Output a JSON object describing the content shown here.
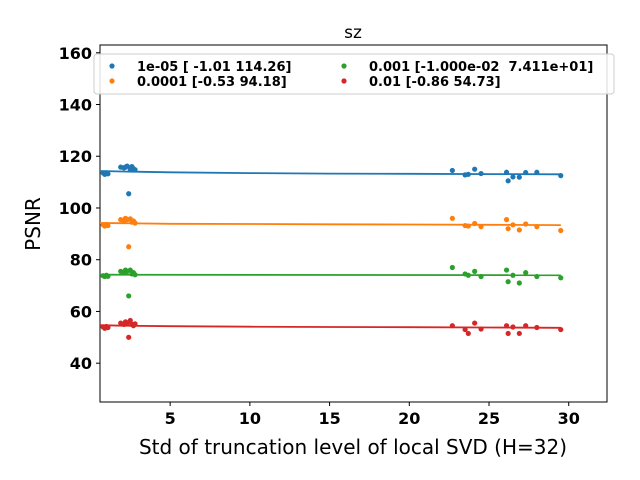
{
  "chart_data": {
    "type": "scatter",
    "title": "sz",
    "xlabel": "Std of truncation level of local SVD (H=32)",
    "ylabel": "PSNR",
    "xlim": [
      0.6,
      32.4
    ],
    "ylim": [
      25,
      163
    ],
    "xticks": [
      5,
      10,
      15,
      20,
      25,
      30
    ],
    "yticks": [
      40,
      60,
      80,
      100,
      120,
      140,
      160
    ],
    "grid": false,
    "legend_position": "top",
    "legend_columns": 2,
    "series": [
      {
        "name": "1e-05 [ -1.01 114.26]",
        "color": "#1f77b4",
        "fit_line": [
          [
            0.6,
            114.3
          ],
          [
            2.0,
            114.1
          ],
          [
            5,
            113.8
          ],
          [
            10,
            113.5
          ],
          [
            15,
            113.3
          ],
          [
            20,
            113.2
          ],
          [
            25,
            113.1
          ],
          [
            29.5,
            113.0
          ]
        ],
        "points": [
          [
            0.8,
            113.5
          ],
          [
            0.9,
            113.0
          ],
          [
            1.0,
            113.6
          ],
          [
            1.1,
            113.2
          ],
          [
            1.9,
            115.8
          ],
          [
            2.1,
            115.5
          ],
          [
            2.2,
            115.8
          ],
          [
            2.3,
            116.2
          ],
          [
            2.4,
            105.5
          ],
          [
            2.5,
            115.0
          ],
          [
            2.6,
            116.0
          ],
          [
            2.7,
            115.2
          ],
          [
            2.8,
            114.8
          ],
          [
            22.7,
            114.5
          ],
          [
            23.5,
            112.8
          ],
          [
            23.7,
            113.0
          ],
          [
            24.1,
            115.0
          ],
          [
            24.5,
            113.3
          ],
          [
            26.1,
            113.8
          ],
          [
            26.2,
            110.5
          ],
          [
            26.5,
            112.0
          ],
          [
            26.9,
            111.9
          ],
          [
            27.3,
            113.7
          ],
          [
            28.0,
            113.8
          ],
          [
            29.5,
            112.5
          ]
        ]
      },
      {
        "name": "0.0001 [-0.53 94.18]",
        "color": "#ff7f0e",
        "fit_line": [
          [
            0.6,
            94.2
          ],
          [
            2.0,
            94.1
          ],
          [
            5,
            93.9
          ],
          [
            10,
            93.8
          ],
          [
            15,
            93.7
          ],
          [
            20,
            93.6
          ],
          [
            25,
            93.5
          ],
          [
            29.5,
            93.4
          ]
        ],
        "points": [
          [
            0.8,
            93.5
          ],
          [
            0.9,
            93.0
          ],
          [
            1.0,
            93.6
          ],
          [
            1.1,
            93.2
          ],
          [
            1.9,
            95.5
          ],
          [
            2.1,
            95.0
          ],
          [
            2.2,
            96.0
          ],
          [
            2.3,
            95.5
          ],
          [
            2.4,
            85.0
          ],
          [
            2.5,
            95.8
          ],
          [
            2.6,
            94.5
          ],
          [
            2.7,
            95.0
          ],
          [
            2.8,
            94.2
          ],
          [
            22.7,
            96.0
          ],
          [
            23.5,
            93.2
          ],
          [
            23.7,
            93.0
          ],
          [
            24.1,
            94.0
          ],
          [
            24.5,
            92.8
          ],
          [
            26.1,
            95.5
          ],
          [
            26.2,
            92.0
          ],
          [
            26.5,
            93.5
          ],
          [
            26.9,
            91.5
          ],
          [
            27.3,
            93.8
          ],
          [
            28.0,
            92.8
          ],
          [
            29.5,
            91.3
          ]
        ]
      },
      {
        "name": "0.001 [-1.000e-02  7.411e+01]",
        "color": "#2ca02c",
        "fit_line": [
          [
            0.6,
            74.2
          ],
          [
            29.5,
            74.0
          ]
        ],
        "points": [
          [
            0.8,
            73.8
          ],
          [
            0.9,
            73.5
          ],
          [
            1.0,
            74.0
          ],
          [
            1.1,
            73.6
          ],
          [
            1.9,
            75.5
          ],
          [
            2.1,
            75.0
          ],
          [
            2.2,
            76.0
          ],
          [
            2.3,
            75.5
          ],
          [
            2.4,
            66.0
          ],
          [
            2.5,
            76.0
          ],
          [
            2.6,
            74.5
          ],
          [
            2.7,
            75.0
          ],
          [
            2.8,
            74.2
          ],
          [
            22.7,
            77.0
          ],
          [
            23.5,
            74.5
          ],
          [
            23.7,
            74.0
          ],
          [
            24.1,
            75.5
          ],
          [
            24.5,
            73.5
          ],
          [
            26.1,
            76.0
          ],
          [
            26.2,
            71.5
          ],
          [
            26.5,
            74.0
          ],
          [
            26.9,
            71.0
          ],
          [
            27.3,
            75.0
          ],
          [
            28.0,
            73.5
          ],
          [
            29.5,
            73.0
          ]
        ]
      },
      {
        "name": "0.01 [-0.86 54.73]",
        "color": "#d62728",
        "fit_line": [
          [
            0.6,
            54.7
          ],
          [
            2.0,
            54.5
          ],
          [
            5,
            54.3
          ],
          [
            10,
            54.1
          ],
          [
            15,
            54.0
          ],
          [
            20,
            53.9
          ],
          [
            25,
            53.8
          ],
          [
            29.5,
            53.7
          ]
        ],
        "points": [
          [
            0.8,
            54.0
          ],
          [
            0.9,
            53.5
          ],
          [
            1.0,
            54.2
          ],
          [
            1.1,
            53.8
          ],
          [
            1.9,
            55.5
          ],
          [
            2.1,
            55.0
          ],
          [
            2.2,
            56.0
          ],
          [
            2.3,
            55.5
          ],
          [
            2.4,
            50.0
          ],
          [
            2.5,
            56.5
          ],
          [
            2.6,
            55.0
          ],
          [
            2.7,
            54.5
          ],
          [
            2.8,
            55.2
          ],
          [
            22.7,
            54.5
          ],
          [
            23.5,
            53.0
          ],
          [
            23.7,
            51.5
          ],
          [
            24.1,
            55.5
          ],
          [
            24.5,
            53.2
          ],
          [
            26.1,
            54.5
          ],
          [
            26.2,
            51.5
          ],
          [
            26.5,
            54.0
          ],
          [
            26.9,
            51.5
          ],
          [
            27.3,
            54.5
          ],
          [
            28.0,
            53.8
          ],
          [
            29.5,
            53.0
          ]
        ]
      }
    ]
  }
}
